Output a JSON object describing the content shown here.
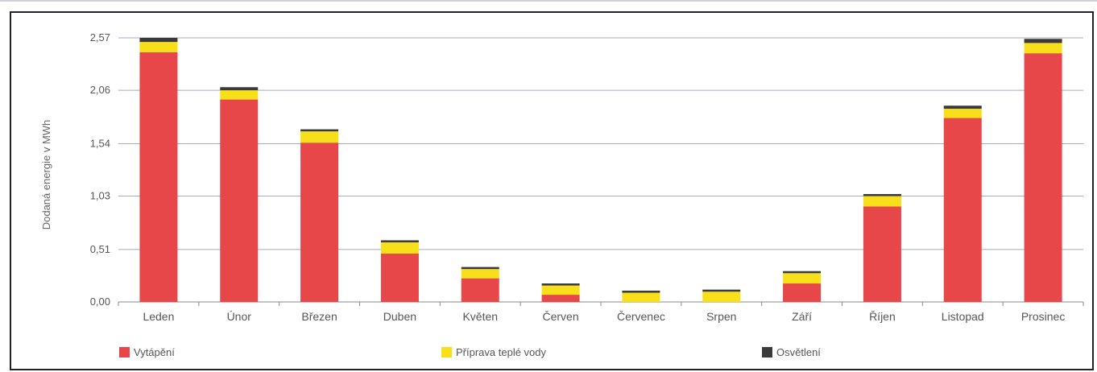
{
  "chart_data": {
    "type": "bar",
    "stacked": true,
    "ylabel": "Dodaná energie v MWh",
    "xlabel": "",
    "ylim": [
      0,
      2.57
    ],
    "yticks": [
      "0,00",
      "0,51",
      "1,03",
      "1,54",
      "2,06",
      "2,57"
    ],
    "ytick_values": [
      0,
      0.51,
      1.03,
      1.54,
      2.06,
      2.57
    ],
    "categories": [
      "Leden",
      "Únor",
      "Březen",
      "Duben",
      "Květen",
      "Červen",
      "Červenec",
      "Srpen",
      "Září",
      "Říjen",
      "Listopad",
      "Prosinec"
    ],
    "series": [
      {
        "name": "Vytápění",
        "color": "#e8474a",
        "values": [
          2.43,
          1.97,
          1.55,
          0.47,
          0.23,
          0.07,
          0.0,
          0.0,
          0.18,
          0.93,
          1.79,
          2.42
        ]
      },
      {
        "name": "Příprava teplé vody",
        "color": "#f7e01a",
        "values": [
          0.1,
          0.09,
          0.11,
          0.11,
          0.09,
          0.09,
          0.09,
          0.1,
          0.1,
          0.1,
          0.09,
          0.1
        ]
      },
      {
        "name": "Osvětlení",
        "color": "#3a3a3a",
        "values": [
          0.04,
          0.03,
          0.02,
          0.02,
          0.02,
          0.02,
          0.02,
          0.02,
          0.02,
          0.02,
          0.03,
          0.04
        ]
      }
    ],
    "grid": true,
    "legend_position": "bottom"
  }
}
